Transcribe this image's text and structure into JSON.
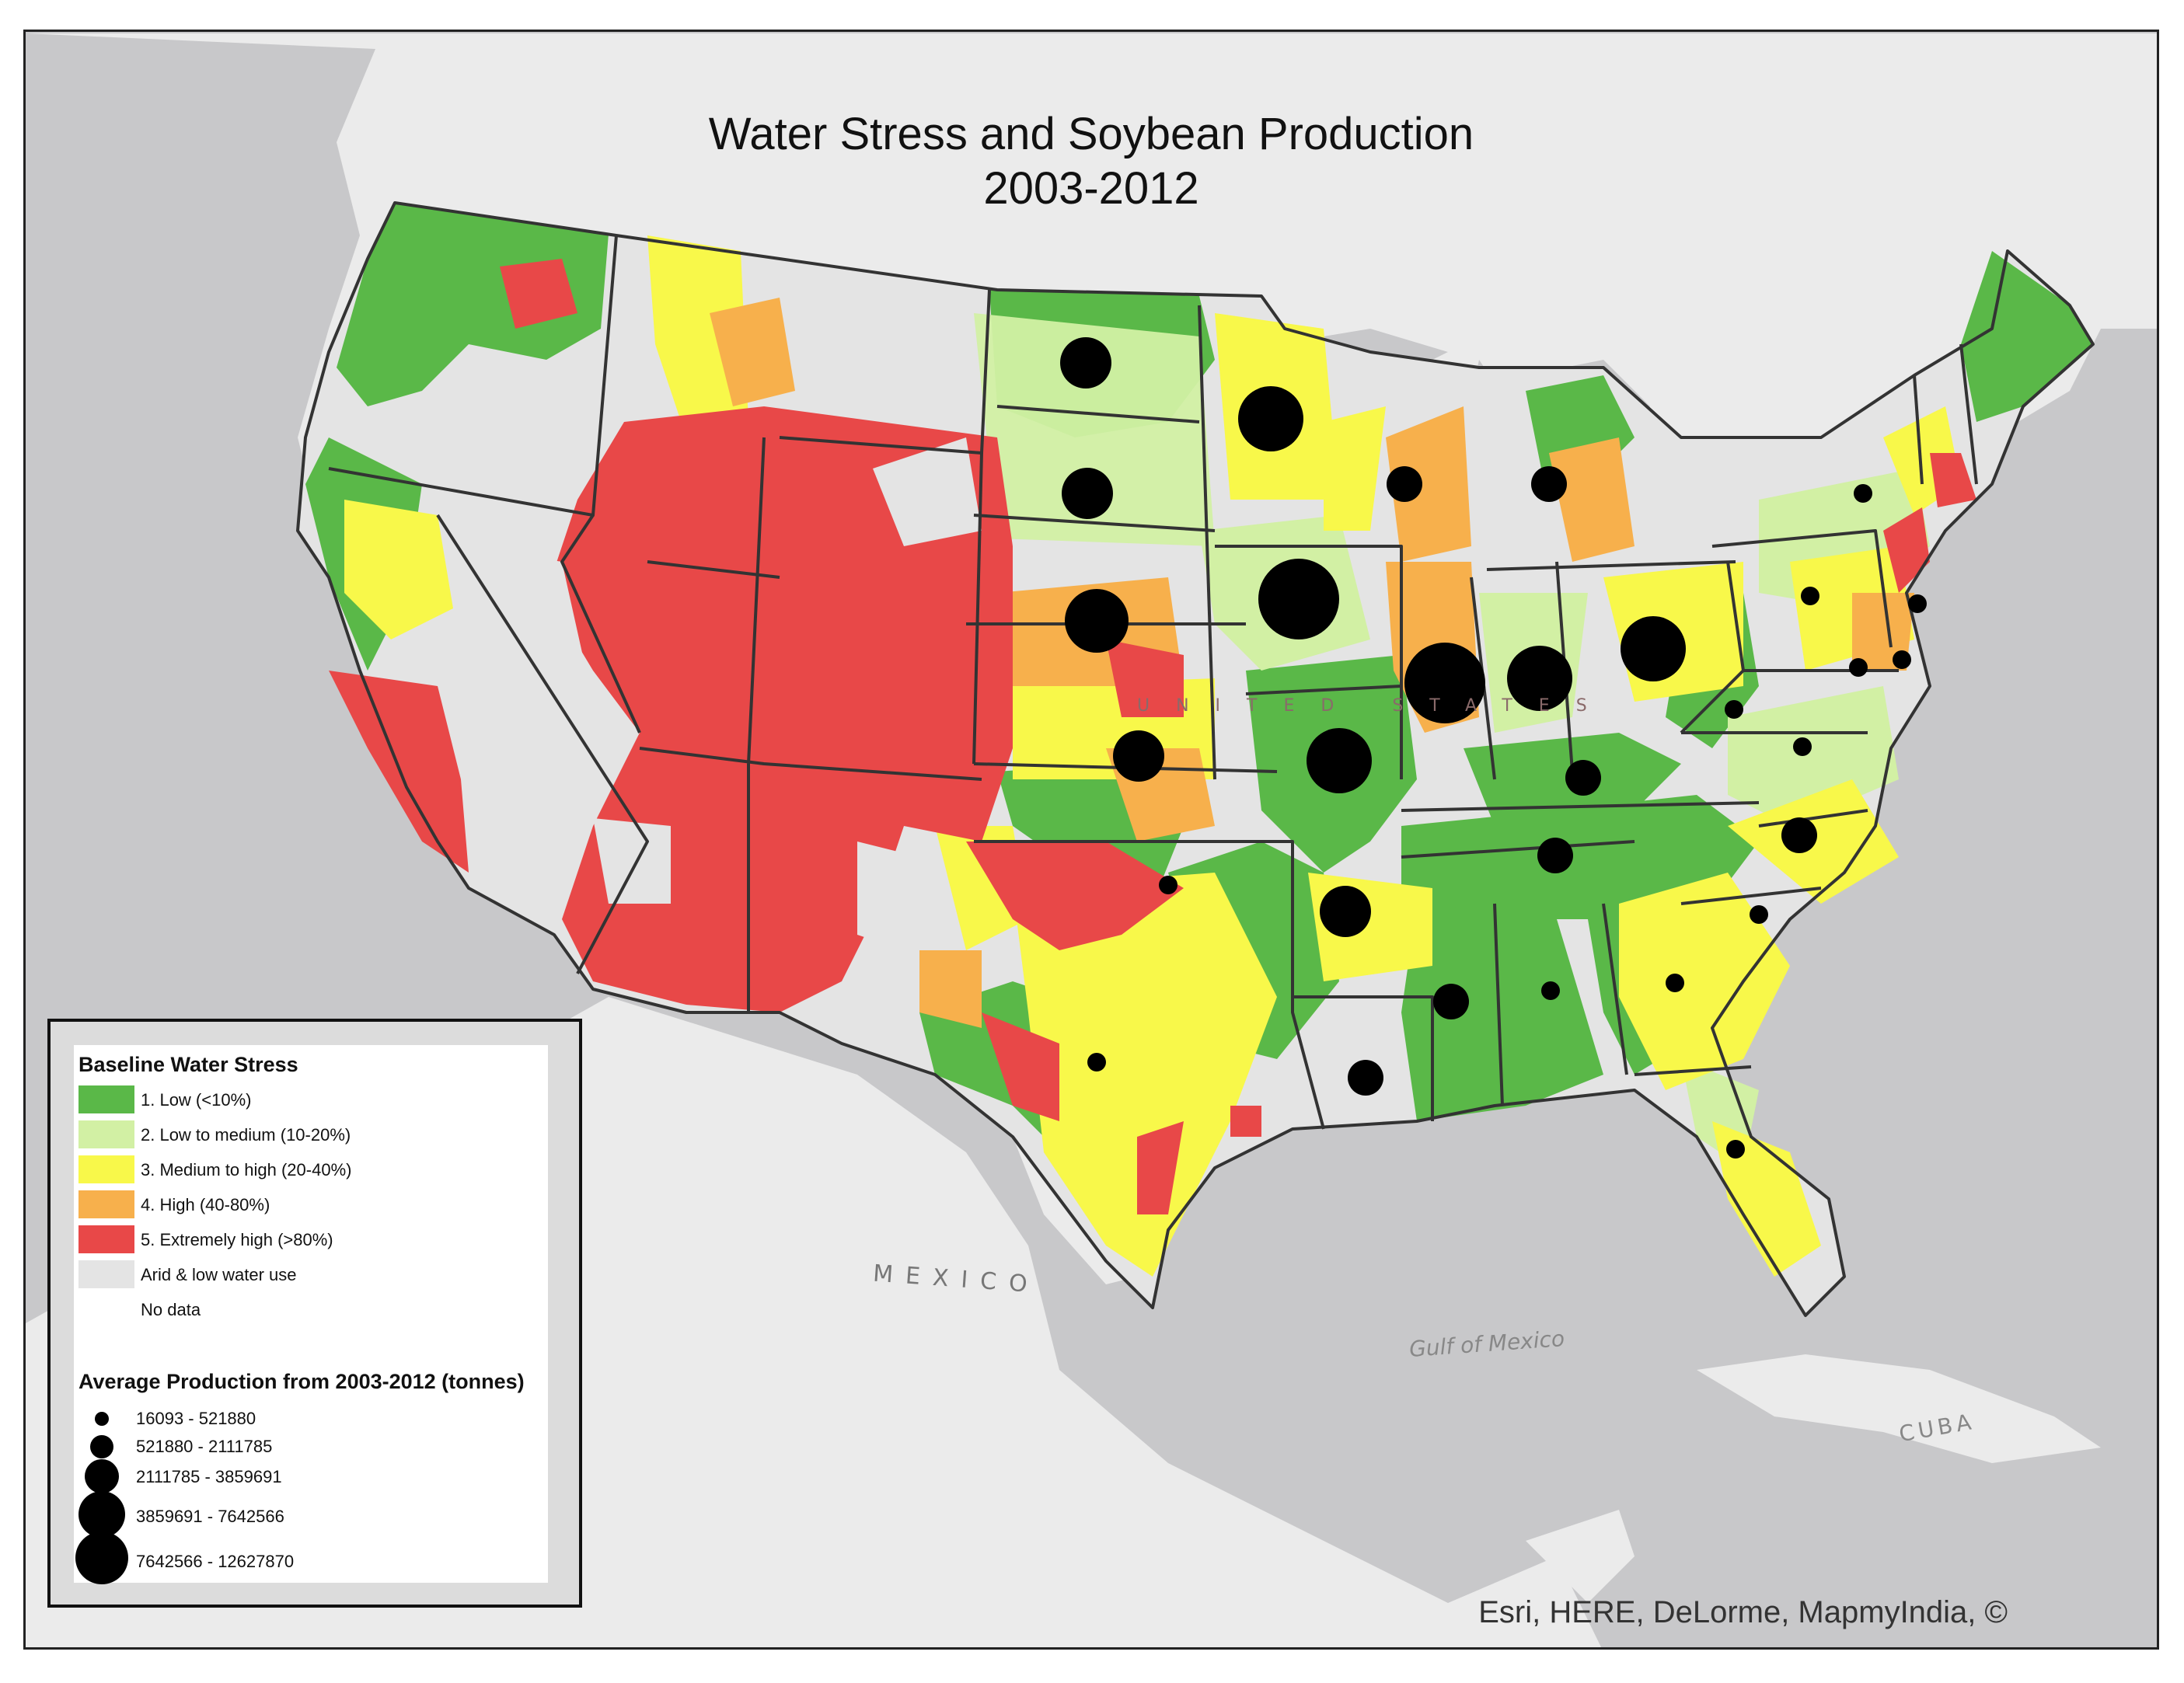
{
  "title": {
    "line1": "Water Stress and Soybean Production",
    "line2": "2003-2012"
  },
  "basemap_labels": {
    "mexico": "MEXICO",
    "gulf": "Gulf of Mexico",
    "cuba": "CUBA",
    "us": "UNITED STATES"
  },
  "attribution": "Esri, HERE, DeLorme, MapmyIndia, ©",
  "colors": {
    "low": "#5ab848",
    "low_medium": "#d2f0a4",
    "medium_high": "#f8f84a",
    "high": "#f7b04c",
    "extremely_high": "#e84848",
    "arid": "#e4e4e4",
    "no_data": "#ffffff",
    "land": "#ebebeb",
    "water": "#c8c8ca",
    "boundary": "#333333",
    "dot": "#000000"
  },
  "legend": {
    "stress_heading": "Baseline Water Stress",
    "stress_classes": [
      {
        "label": "1. Low (<10%)",
        "color": "#5ab848"
      },
      {
        "label": "2. Low to medium (10-20%)",
        "color": "#d2f0a4"
      },
      {
        "label": "3. Medium to high (20-40%)",
        "color": "#f8f84a"
      },
      {
        "label": "4. High (40-80%)",
        "color": "#f7b04c"
      },
      {
        "label": "5. Extremely high (>80%)",
        "color": "#e84848"
      },
      {
        "label": "Arid & low water use",
        "color": "#e4e4e4"
      },
      {
        "label": "No data",
        "color": "#ffffff"
      }
    ],
    "production_heading": "Average Production from 2003-2012 (tonnes)",
    "production_classes": [
      {
        "label": "16093 - 521880",
        "class": 1
      },
      {
        "label": "521880 - 2111785",
        "class": 2
      },
      {
        "label": "2111785 - 3859691",
        "class": 3
      },
      {
        "label": "3859691 - 7642566",
        "class": 4
      },
      {
        "label": "7642566 - 12627870",
        "class": 5
      }
    ]
  }
}
